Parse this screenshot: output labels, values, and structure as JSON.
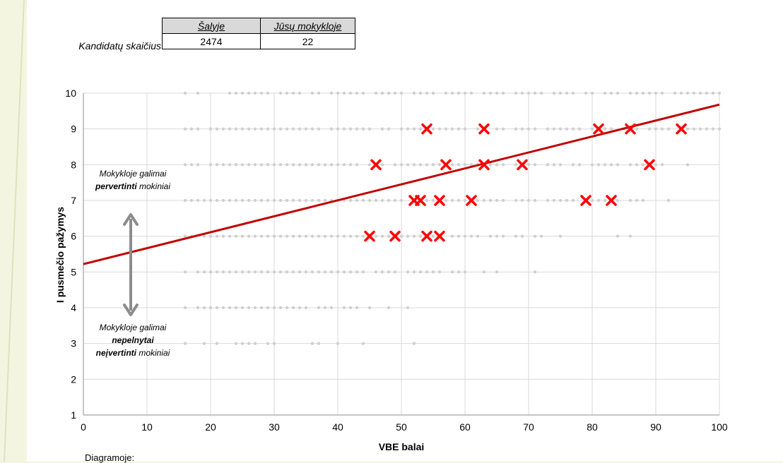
{
  "stats_table": {
    "row_label": "Kandidatų skaičius",
    "headers": [
      "Šalyje",
      "Jūsų mokykloje"
    ],
    "values": [
      "2474",
      "22"
    ]
  },
  "chart_data": {
    "type": "scatter",
    "xlabel": "VBE balai",
    "ylabel": "I pusmečio pažymys",
    "xlim": [
      0,
      100
    ],
    "ylim": [
      1,
      10
    ],
    "x_ticks": [
      0,
      10,
      20,
      30,
      40,
      50,
      60,
      70,
      80,
      90,
      100
    ],
    "y_ticks": [
      1,
      2,
      3,
      4,
      5,
      6,
      7,
      8,
      9,
      10
    ],
    "grid": true,
    "trend_line": {
      "x": [
        0,
        100
      ],
      "y": [
        5.22,
        9.68
      ],
      "color": "#c00000"
    },
    "school_points": {
      "marker": "x",
      "color": "#ff0000",
      "points": [
        [
          54,
          9
        ],
        [
          63,
          9
        ],
        [
          81,
          9
        ],
        [
          86,
          9
        ],
        [
          94,
          9
        ],
        [
          46,
          8
        ],
        [
          57,
          8
        ],
        [
          63,
          8
        ],
        [
          69,
          8
        ],
        [
          89,
          8
        ],
        [
          52,
          7
        ],
        [
          53,
          7
        ],
        [
          56,
          7
        ],
        [
          61,
          7
        ],
        [
          79,
          7
        ],
        [
          83,
          7
        ],
        [
          45,
          6
        ],
        [
          49,
          6
        ],
        [
          54,
          6
        ],
        [
          56,
          6
        ]
      ]
    },
    "country_points": {
      "marker": "dot",
      "color": "#d0d0d0",
      "rows": [
        {
          "y": 10,
          "x_ranges": [
            [
              16,
              16
            ],
            [
              18,
              18
            ],
            [
              23,
              29
            ],
            [
              31,
              34
            ],
            [
              36,
              37
            ],
            [
              39,
              44
            ],
            [
              46,
              50
            ],
            [
              52,
              55
            ],
            [
              57,
              61
            ],
            [
              63,
              66
            ],
            [
              68,
              72
            ],
            [
              74,
              77
            ],
            [
              79,
              80
            ],
            [
              82,
              84
            ],
            [
              86,
              91
            ],
            [
              93,
              100
            ]
          ]
        },
        {
          "y": 9,
          "x_ranges": [
            [
              16,
              18
            ],
            [
              20,
              37
            ],
            [
              39,
              45
            ],
            [
              47,
              48
            ],
            [
              50,
              53
            ],
            [
              55,
              60
            ],
            [
              62,
              63
            ],
            [
              65,
              66
            ],
            [
              68,
              71
            ],
            [
              73,
              78
            ],
            [
              80,
              83
            ],
            [
              85,
              87
            ],
            [
              89,
              92
            ],
            [
              94,
              100
            ]
          ]
        },
        {
          "y": 8,
          "x_ranges": [
            [
              16,
              18
            ],
            [
              20,
              43
            ],
            [
              45,
              47
            ],
            [
              49,
              62
            ],
            [
              64,
              66
            ],
            [
              68,
              71
            ],
            [
              73,
              75
            ],
            [
              77,
              78
            ],
            [
              80,
              84
            ],
            [
              86,
              91
            ],
            [
              95,
              95
            ]
          ]
        },
        {
          "y": 7,
          "x_ranges": [
            [
              16,
              50
            ],
            [
              52,
              60
            ],
            [
              62,
              66
            ],
            [
              68,
              71
            ],
            [
              73,
              77
            ],
            [
              80,
              84
            ],
            [
              86,
              88
            ],
            [
              92,
              92
            ]
          ]
        },
        {
          "y": 6,
          "x_ranges": [
            [
              16,
              17
            ],
            [
              19,
              44
            ],
            [
              46,
              48
            ],
            [
              50,
              53
            ],
            [
              55,
              56
            ],
            [
              58,
              62
            ],
            [
              64,
              66
            ],
            [
              68,
              69
            ],
            [
              71,
              72
            ],
            [
              75,
              75
            ],
            [
              84,
              84
            ],
            [
              86,
              86
            ]
          ]
        },
        {
          "y": 5,
          "x_ranges": [
            [
              16,
              16
            ],
            [
              18,
              44
            ],
            [
              46,
              49
            ],
            [
              51,
              56
            ],
            [
              58,
              60
            ],
            [
              63,
              63
            ],
            [
              65,
              65
            ],
            [
              71,
              71
            ]
          ]
        },
        {
          "y": 4,
          "x_ranges": [
            [
              16,
              16
            ],
            [
              18,
              35
            ],
            [
              37,
              39
            ],
            [
              41,
              43
            ],
            [
              45,
              45
            ],
            [
              48,
              48
            ],
            [
              51,
              51
            ]
          ]
        },
        {
          "y": 3,
          "x_ranges": [
            [
              16,
              16
            ],
            [
              19,
              19
            ],
            [
              21,
              21
            ],
            [
              24,
              27
            ],
            [
              29,
              30
            ],
            [
              36,
              37
            ],
            [
              40,
              40
            ],
            [
              44,
              44
            ],
            [
              52,
              52
            ]
          ]
        }
      ]
    },
    "annotations": {
      "upper": {
        "line1": "Mokykloje galimai",
        "bold": "pervertinti",
        "rest": " mokiniai"
      },
      "lower": {
        "line1": "Mokykloje galimai",
        "line2_bold": "nepelnytai",
        "line3_bold": "neįvertinti",
        "line3_rest": " mokiniai"
      }
    }
  },
  "footer": {
    "text": "Diagramoje:"
  }
}
